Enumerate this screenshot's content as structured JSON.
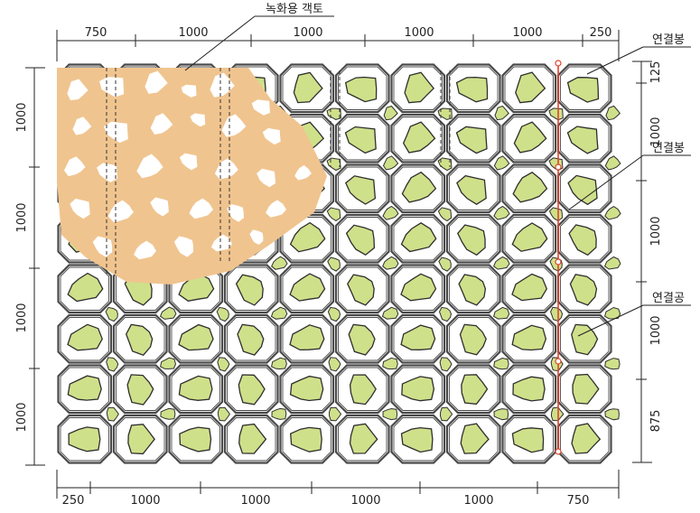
{
  "labels": {
    "soil": "녹화용 객토",
    "connector_rod_1": "연결봉",
    "connector_rod_2": "연결봉",
    "connector_hole": "연결공"
  },
  "dimensions": {
    "top": [
      "750",
      "1000",
      "1000",
      "1000",
      "1000",
      "250"
    ],
    "bottom": [
      "250",
      "1000",
      "1000",
      "1000",
      "1000",
      "750"
    ],
    "left": [
      "1000",
      "1000",
      "1000",
      "1000"
    ],
    "right": [
      "125",
      "1000",
      "1000",
      "1000",
      "875"
    ]
  },
  "colors": {
    "plant": "#cfe08a",
    "soil": "#f0c48f",
    "block_outline": "#4a4a4a",
    "rod": "#e2422a",
    "background": "#ffffff"
  }
}
